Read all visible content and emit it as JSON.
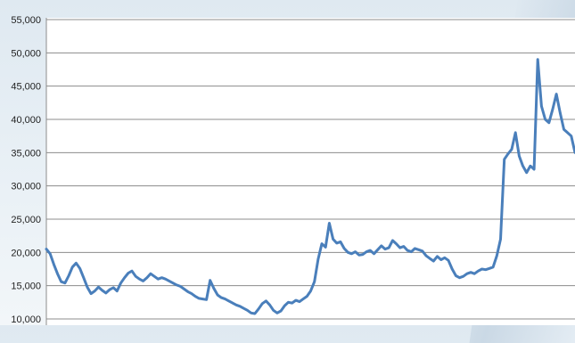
{
  "chart_data": {
    "type": "line",
    "title": "",
    "xlabel": "",
    "ylabel": "",
    "ylim": [
      10000,
      55000
    ],
    "y_ticks": [
      "55,000",
      "50,000",
      "45,000",
      "40,000",
      "35,000",
      "30,000",
      "25,000",
      "20,000",
      "15,000",
      "10,000"
    ],
    "y_tick_values": [
      55000,
      50000,
      45000,
      40000,
      35000,
      30000,
      25000,
      20000,
      15000,
      10000
    ],
    "grid": true,
    "colors": {
      "line": "#4a7fbb",
      "grid": "#8c8c8c",
      "plot_bg": "#ffffff"
    },
    "series": [
      {
        "values": [
          20500,
          19800,
          18200,
          16800,
          15600,
          15400,
          16500,
          17800,
          18400,
          17600,
          16200,
          14800,
          13800,
          14200,
          14800,
          14300,
          13900,
          14400,
          14700,
          14200,
          15400,
          16200,
          16900,
          17200,
          16400,
          16000,
          15700,
          16200,
          16800,
          16400,
          16000,
          16200,
          16000,
          15700,
          15400,
          15100,
          14900,
          14500,
          14100,
          13800,
          13400,
          13100,
          13000,
          12900,
          15800,
          14600,
          13600,
          13200,
          13000,
          12700,
          12400,
          12100,
          11900,
          11600,
          11300,
          10900,
          10800,
          11500,
          12300,
          12700,
          12100,
          11300,
          10900,
          11200,
          12000,
          12500,
          12400,
          12800,
          12600,
          13000,
          13400,
          14200,
          15600,
          19000,
          21300,
          20800,
          24400,
          22000,
          21400,
          21600,
          20600,
          20000,
          19800,
          20100,
          19600,
          19700,
          20100,
          20300,
          19800,
          20400,
          21000,
          20500,
          20700,
          21800,
          21300,
          20700,
          20900,
          20300,
          20100,
          20600,
          20400,
          20200,
          19500,
          19100,
          18700,
          19400,
          18900,
          19200,
          18800,
          17500,
          16500,
          16200,
          16400,
          16800,
          17000,
          16800,
          17200,
          17500,
          17400,
          17600,
          17800,
          19500,
          22000,
          34000,
          34800,
          35500,
          38000,
          34500,
          33000,
          32000,
          33000,
          32500,
          49000,
          42000,
          40000,
          39500,
          41500,
          43800,
          41000,
          38500,
          38000,
          37500,
          35000
        ]
      }
    ]
  }
}
